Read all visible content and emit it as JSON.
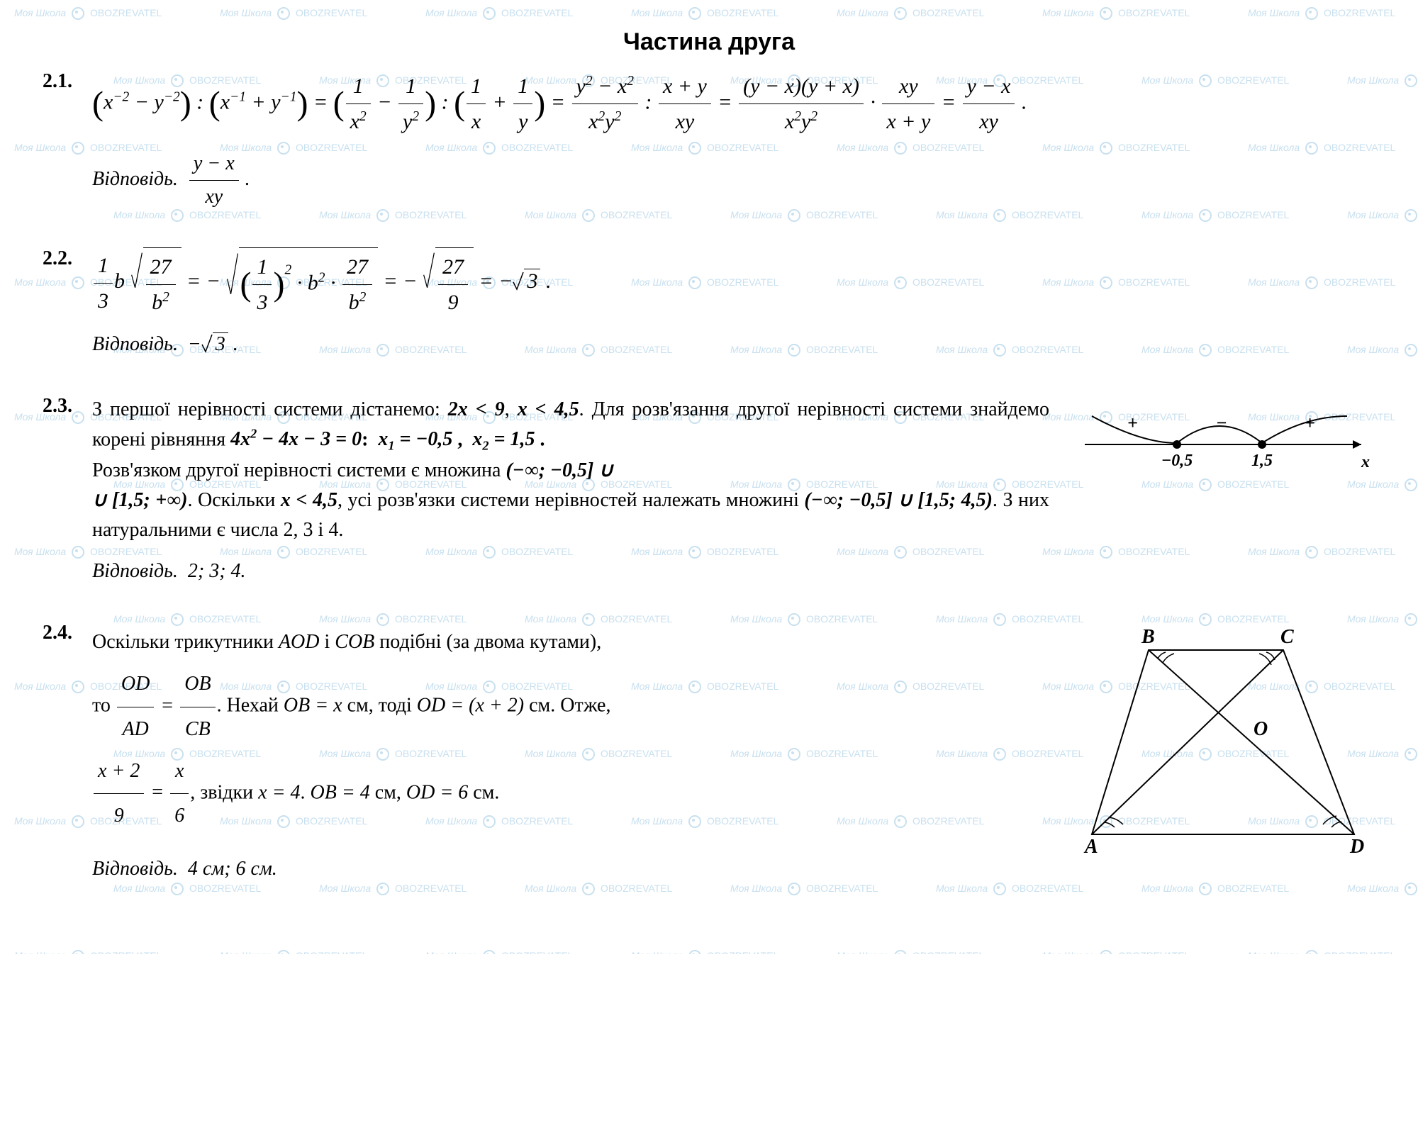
{
  "title": "Частина друга",
  "watermark_text": "Моя Школа",
  "watermark_brand": "OBOZREVATEL",
  "watermark_color": "#c8e0ef",
  "problems": {
    "p21": {
      "num": "2.1.",
      "answer_label": "Відповідь."
    },
    "p22": {
      "num": "2.2.",
      "answer_label": "Відповідь.",
      "answer_value": "−√3 ."
    },
    "p23": {
      "num": "2.3.",
      "text1": "З першої нерівності системи дістанемо: ",
      "ineq1": "2x < 9",
      "comma": ", ",
      "ineq2": "x < 4,5",
      "text2": ". Для розв'язання другої нерівності системи знайдемо корені рівняння ",
      "eq": "4x² − 4x − 3 = 0",
      "roots": ": x₁ = −0,5 , x₂ = 1,5 .",
      "text3": "Розв'язком другої нерівності системи є множина ",
      "set1": "(−∞; −0,5] ∪",
      "set1b": "∪ [1,5; +∞)",
      "text4": ". Оскільки ",
      "ineq3": "x < 4,5",
      "text5": ", усі розв'язки системи нерівностей належать множині ",
      "set2": "(−∞; −0,5] ∪ [1,5; 4,5)",
      "text6": ". З них натуральними є числа 2, 3 і 4.",
      "answer_label": "Відповідь.",
      "answer_value": "2; 3; 4.",
      "numberline": {
        "points": [
          "−0,5",
          "1,5"
        ],
        "signs": [
          "+",
          "−",
          "+"
        ],
        "axis_label": "x"
      }
    },
    "p24": {
      "num": "2.4.",
      "text1": "Оскільки трикутники ",
      "tri1": "AOD",
      "and": " і ",
      "tri2": "COB",
      "text2": " подібні (за двома кутами),",
      "text3": "то ",
      "text4": ". Нехай ",
      "ob": "OB = x",
      "cm": " см, тоді ",
      "od": "OD = (x + 2)",
      "cm2": " см. Отже,",
      "text5": ", звідки ",
      "res": "x = 4",
      "dot": ". ",
      "ob2": "OB = 4",
      "cm3": " см, ",
      "od2": "OD = 6",
      "cm4": " см.",
      "answer_label": "Відповідь.",
      "answer_value": "4 см; 6 см.",
      "trapezoid": {
        "labels": [
          "A",
          "B",
          "C",
          "D",
          "O"
        ]
      }
    }
  }
}
